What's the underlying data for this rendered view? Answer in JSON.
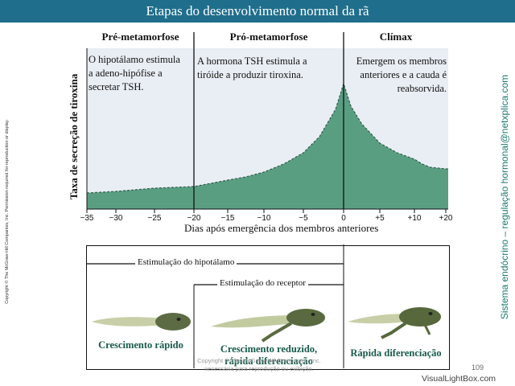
{
  "header": {
    "title": "Etapas do desenvolvimento normal da rã"
  },
  "side": {
    "copyright": "Copyright © The McGraw-Hill Companies, Inc. Permission required for reproduction or display.",
    "tag": "Sistema endócrino – regulação hormonal@netxplica.com"
  },
  "phases": [
    {
      "label": "Pré-metamorfose",
      "annotation": [
        "O hipotálamo estimula",
        "a adeno-hipófise a",
        "secretar TSH."
      ]
    },
    {
      "label": "Pró-metamorfose",
      "annotation": [
        "A hormona TSH estimula a",
        "tiróide a produzir tiroxina."
      ]
    },
    {
      "label": "Clímax",
      "annotation": [
        "Emergem os membros",
        "anteriores e a cauda é",
        "reabsorvida."
      ]
    }
  ],
  "chart_data": {
    "type": "area",
    "title": "",
    "xlabel": "Dias após emergência  dos membros anteriores",
    "ylabel": "Taxa de secreção de tiroxina",
    "xlim": [
      -35,
      20
    ],
    "ylim": [
      0,
      100
    ],
    "xticks": [
      "−35",
      "−30",
      "−25",
      "−20",
      "−15",
      "−10",
      "−5",
      "0",
      "+5",
      "+10",
      "+20"
    ],
    "xtick_values": [
      -35,
      -30,
      -25,
      -20,
      -15,
      -10,
      -5,
      0,
      5,
      10,
      20
    ],
    "phase_boundaries": [
      -20,
      0
    ],
    "x": [
      -35,
      -30,
      -25,
      -20,
      -17.5,
      -15,
      -12.5,
      -10,
      -7.5,
      -5,
      -3,
      -1,
      0,
      1,
      2.5,
      5,
      7.5,
      10,
      12.5,
      15,
      20
    ],
    "y": [
      10,
      11,
      13,
      14,
      16,
      18,
      20,
      23,
      28,
      35,
      45,
      62,
      78,
      64,
      53,
      41,
      35,
      31,
      28,
      26,
      25
    ],
    "fill_color": "#5a9e82",
    "line_color": "#2f5f4c",
    "grid": false
  },
  "timeline": {
    "bars": [
      {
        "label": "Estimulação do hipotálamo",
        "x_start": -35,
        "x_end": 0
      },
      {
        "label": "Estimulação do receptor",
        "x_start": -20,
        "x_end": 0
      }
    ],
    "stages": [
      {
        "label": [
          "Crescimento rápido"
        ]
      },
      {
        "label": [
          "Crescimento reduzido,",
          "rápida diferenciação"
        ]
      },
      {
        "label": [
          "Rápida diferenciação"
        ]
      }
    ]
  },
  "footer": {
    "lines": [
      "Copyright © The McGraw-Hill Companies, Inc.",
      "necessária para reprodução ou exibição."
    ],
    "page_number": "109",
    "watermark": "VisualLightBox.com"
  },
  "colors": {
    "title_bar": "#1f6e8c",
    "chart_bg": "#e9eef4",
    "area": "#5a9e82",
    "side_tag": "#1a7a6f",
    "stage_text": "#165a4a"
  }
}
